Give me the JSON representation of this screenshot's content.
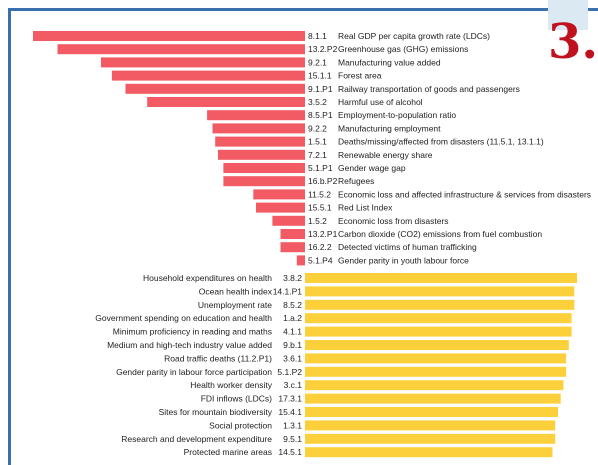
{
  "section_number": "3.",
  "chart_data": {
    "type": "bar",
    "orientation": "horizontal",
    "title": "",
    "xlabel": "",
    "ylabel": "",
    "xlim": [
      -100,
      100
    ],
    "colors": {
      "negative": "#f25a64",
      "positive": "#fcd03a"
    },
    "negative_bars": [
      {
        "code": "8.1.1",
        "label": "Real GDP per capita growth rate (LDCs)",
        "value": -100
      },
      {
        "code": "13.2.P2",
        "label": "Greenhouse gas (GHG) emissions",
        "value": -91
      },
      {
        "code": "9.2.1",
        "label": "Manufacturing value added",
        "value": -75
      },
      {
        "code": "15.1.1",
        "label": "Forest area",
        "value": -71
      },
      {
        "code": "9.1.P1",
        "label": "Railway transportation of goods and passengers",
        "value": -66
      },
      {
        "code": "3.5.2",
        "label": "Harmful use of alcohol",
        "value": -58
      },
      {
        "code": "8.5.P1",
        "label": "Employment-to-population ratio",
        "value": -36
      },
      {
        "code": "9.2.2",
        "label": "Manufacturing employment",
        "value": -34
      },
      {
        "code": "1.5.1",
        "label": "Deaths/missing/affected from disasters (11.5.1, 13.1.1)",
        "value": -33
      },
      {
        "code": "7.2.1",
        "label": "Renewable energy share",
        "value": -32
      },
      {
        "code": "5.1.P1",
        "label": "Gender wage gap",
        "value": -30
      },
      {
        "code": "16.b.P2",
        "label": "Refugees",
        "value": -30
      },
      {
        "code": "11.5.2",
        "label": "Economic loss and affected infrastructure & services from disasters",
        "value": -19
      },
      {
        "code": "15.5.1",
        "label": "Red List Index",
        "value": -18
      },
      {
        "code": "1.5.2",
        "label": "Economic loss from disasters",
        "value": -12
      },
      {
        "code": "13.2.P1",
        "label": "Carbon dioxide (CO2) emissions from fuel combustion",
        "value": -9
      },
      {
        "code": "16.2.2",
        "label": "Detected victims of human trafficking",
        "value": -9
      },
      {
        "code": "5.1.P4",
        "label": "Gender parity in youth labour force",
        "value": -3
      }
    ],
    "positive_bars": [
      {
        "code": "3.8.2",
        "label": "Household expenditures on health",
        "value": 100
      },
      {
        "code": "14.1.P1",
        "label": "Ocean health index",
        "value": 99
      },
      {
        "code": "8.5.2",
        "label": "Unemployment rate",
        "value": 99
      },
      {
        "code": "1.a.2",
        "label": "Government spending on education and health",
        "value": 98
      },
      {
        "code": "4.1.1",
        "label": "Minimum proficiency in reading and maths",
        "value": 98
      },
      {
        "code": "9.b.1",
        "label": "Medium and high-tech industry value added",
        "value": 97
      },
      {
        "code": "3.6.1",
        "label": "Road traffic deaths (11.2.P1)",
        "value": 96
      },
      {
        "code": "5.1.P2",
        "label": "Gender parity in labour force participation",
        "value": 96
      },
      {
        "code": "3.c.1",
        "label": "Health worker density",
        "value": 95
      },
      {
        "code": "17.3.1",
        "label": "FDI inflows (LDCs)",
        "value": 94
      },
      {
        "code": "15.4.1",
        "label": "Sites for mountain biodiversity",
        "value": 93
      },
      {
        "code": "1.3.1",
        "label": "Social protection",
        "value": 92
      },
      {
        "code": "9.5.1",
        "label": "Research and development expenditure",
        "value": 92
      },
      {
        "code": "14.5.1",
        "label": "Protected marine areas",
        "value": 91
      }
    ]
  }
}
